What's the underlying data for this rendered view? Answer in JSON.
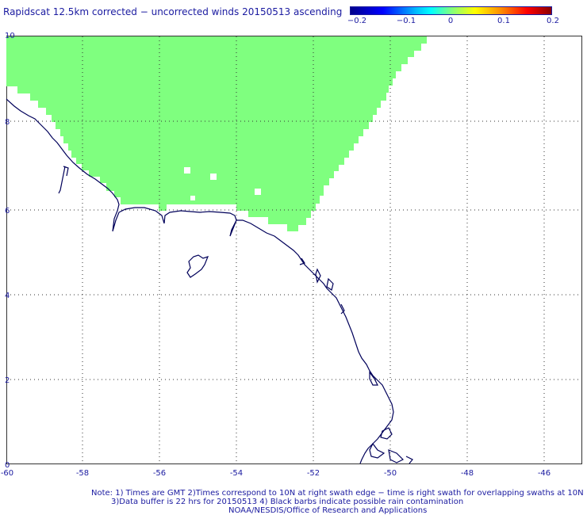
{
  "title": "Rapidscat 12.5km corrected − uncorrected winds 20150513 ascending",
  "colorbar": {
    "labels": [
      "−0.2",
      "−0.1",
      "0",
      "0.1",
      "0.2"
    ],
    "min": -0.2,
    "max": 0.2
  },
  "map": {
    "lon_range": [
      -60,
      -45
    ],
    "lat_range": [
      0,
      10
    ],
    "x_ticks": [
      "-60",
      "-58",
      "-56",
      "-54",
      "-52",
      "-50",
      "-48",
      "-46"
    ],
    "y_ticks": [
      "0",
      "2",
      "4",
      "6",
      "8",
      "10"
    ],
    "swath_color": "#7fff7f",
    "coast_color": "#00005a",
    "grid": true
  },
  "notes": {
    "line1": "Note: 1) Times are GMT 2)Times correspond to 10N at right swath edge − time is right swath for overlapping swaths at 10N",
    "line2": "3)Data buffer is 22 hrs for 20150513 4) Black barbs indicate possible rain contamination",
    "line3": "NOAA/NESDIS/Office of Research and Applications"
  }
}
